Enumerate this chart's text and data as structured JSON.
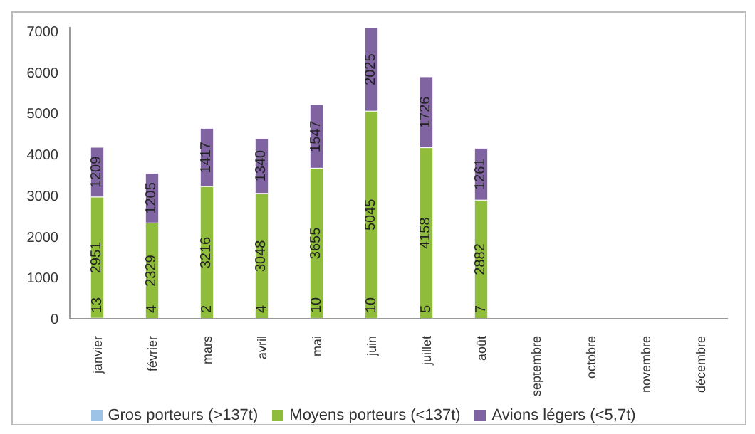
{
  "chart_data": {
    "type": "bar",
    "stacked": true,
    "categories": [
      "janvier",
      "février",
      "mars",
      "avril",
      "mai",
      "juin",
      "juillet",
      "août",
      "septembre",
      "octobre",
      "novembre",
      "décembre"
    ],
    "series": [
      {
        "name": "Gros porteurs (>137t)",
        "color": "#9dc3e6",
        "values": [
          13,
          4,
          2,
          4,
          10,
          10,
          5,
          7,
          null,
          null,
          null,
          null
        ]
      },
      {
        "name": "Moyens porteurs (<137t)",
        "color": "#8fbc3a",
        "values": [
          2951,
          2329,
          3216,
          3048,
          3655,
          5045,
          4158,
          2882,
          null,
          null,
          null,
          null
        ]
      },
      {
        "name": "Avions légers (<5,7t)",
        "color": "#8064a2",
        "values": [
          1209,
          1205,
          1417,
          1340,
          1547,
          2025,
          1726,
          1261,
          null,
          null,
          null,
          null
        ]
      }
    ],
    "ylim": [
      0,
      7100
    ],
    "yticks": [
      0,
      1000,
      2000,
      3000,
      4000,
      5000,
      6000,
      7000
    ],
    "grid": false,
    "legend": "bottom",
    "data_labels": true
  }
}
